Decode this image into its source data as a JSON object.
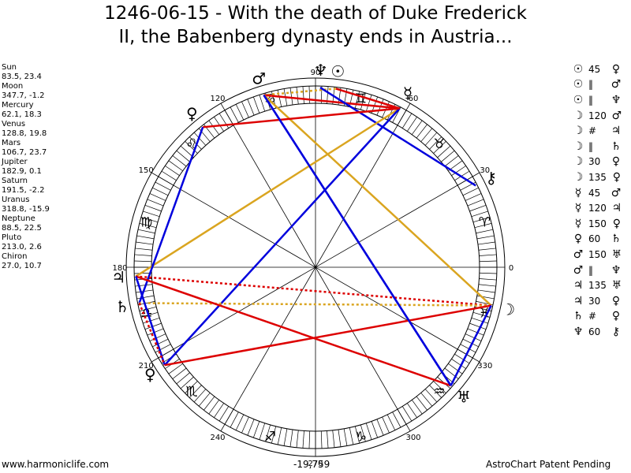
{
  "title": {
    "line1": "1246-06-15 - With the death of Duke Frederick",
    "line2": "II, the Babenberg dynasty ends in Austria..."
  },
  "positions": [
    {
      "name": "Sun",
      "value": "83.5, 23.4"
    },
    {
      "name": "Moon",
      "value": "347.7, -1.2"
    },
    {
      "name": "Mercury",
      "value": "62.1, 18.3"
    },
    {
      "name": "Venus",
      "value": "128.8, 19.8"
    },
    {
      "name": "Mars",
      "value": "106.7, 23.7"
    },
    {
      "name": "Jupiter",
      "value": "182.9, 0.1"
    },
    {
      "name": "Saturn",
      "value": "191.5, -2.2"
    },
    {
      "name": "Uranus",
      "value": "318.8, -15.9"
    },
    {
      "name": "Neptune",
      "value": "88.5, 22.5"
    },
    {
      "name": "Pluto",
      "value": "213.0, 2.6"
    },
    {
      "name": "Chiron",
      "value": "27.0, 10.7"
    }
  ],
  "aspects": [
    {
      "p1": "☉",
      "asp": "45",
      "p2": "♀"
    },
    {
      "p1": "☉",
      "asp": "‖",
      "p2": "♂"
    },
    {
      "p1": "☉",
      "asp": "‖",
      "p2": "♆"
    },
    {
      "p1": "☽",
      "asp": "120",
      "p2": "♂"
    },
    {
      "p1": "☽",
      "asp": "#",
      "p2": "♃"
    },
    {
      "p1": "☽",
      "asp": "‖",
      "p2": "♄"
    },
    {
      "p1": "☽",
      "asp": "30",
      "p2": "♀"
    },
    {
      "p1": "☽",
      "asp": "135",
      "p2": "♀"
    },
    {
      "p1": "☿",
      "asp": "45",
      "p2": "♂"
    },
    {
      "p1": "☿",
      "asp": "120",
      "p2": "♃"
    },
    {
      "p1": "☿",
      "asp": "150",
      "p2": "♀"
    },
    {
      "p1": "♀",
      "asp": "60",
      "p2": "♄"
    },
    {
      "p1": "♂",
      "asp": "150",
      "p2": "♅"
    },
    {
      "p1": "♂",
      "asp": "‖",
      "p2": "♆"
    },
    {
      "p1": "♃",
      "asp": "135",
      "p2": "♅"
    },
    {
      "p1": "♃",
      "asp": "30",
      "p2": "♀"
    },
    {
      "p1": "♄",
      "asp": "#",
      "p2": "♀"
    },
    {
      "p1": "♆",
      "asp": "60",
      "p2": "⚷"
    }
  ],
  "wheel": {
    "degree_labels": [
      "0",
      "30",
      "60",
      "90",
      "120",
      "150",
      "180",
      "210",
      "240",
      "270",
      "300",
      "330"
    ],
    "zodiac": [
      "♈",
      "♉",
      "♊",
      "♋",
      "♌",
      "♍",
      "♎",
      "♏",
      "♐",
      "♑",
      "♒",
      "♓"
    ],
    "planets": [
      {
        "glyph": "☉",
        "lon": 83.5
      },
      {
        "glyph": "☽",
        "lon": 347.7
      },
      {
        "glyph": "☿",
        "lon": 62.1
      },
      {
        "glyph": "♀",
        "lon": 128.8
      },
      {
        "glyph": "♂",
        "lon": 106.7
      },
      {
        "glyph": "♃",
        "lon": 182.9
      },
      {
        "glyph": "♄",
        "lon": 191.5
      },
      {
        "glyph": "♅",
        "lon": 318.8
      },
      {
        "glyph": "♆",
        "lon": 88.5
      },
      {
        "glyph": "♀",
        "lon": 213.0
      },
      {
        "glyph": "⚷",
        "lon": 27.0
      }
    ],
    "aspect_lines": [
      {
        "from": 83.5,
        "to": 62.1,
        "color": "#dd0000",
        "dotted": false
      },
      {
        "from": 83.5,
        "to": 106.7,
        "color": "#daa520",
        "dotted": true
      },
      {
        "from": 106.7,
        "to": 62.1,
        "color": "#dd0000",
        "dotted": false
      },
      {
        "from": 106.7,
        "to": 318.8,
        "color": "#0000dd",
        "dotted": false
      },
      {
        "from": 88.5,
        "to": 27.0,
        "color": "#0000dd",
        "dotted": false
      },
      {
        "from": 106.7,
        "to": 347.7,
        "color": "#daa520",
        "dotted": false
      },
      {
        "from": 62.1,
        "to": 182.9,
        "color": "#daa520",
        "dotted": false
      },
      {
        "from": 62.1,
        "to": 213.0,
        "color": "#0000dd",
        "dotted": false
      },
      {
        "from": 128.8,
        "to": 62.1,
        "color": "#dd0000",
        "dotted": false
      },
      {
        "from": 128.8,
        "to": 191.5,
        "color": "#0000dd",
        "dotted": false
      },
      {
        "from": 347.7,
        "to": 182.9,
        "color": "#dd0000",
        "dotted": true
      },
      {
        "from": 347.7,
        "to": 191.5,
        "color": "#daa520",
        "dotted": true
      },
      {
        "from": 347.7,
        "to": 213.0,
        "color": "#dd0000",
        "dotted": false
      },
      {
        "from": 347.7,
        "to": 318.8,
        "color": "#0000dd",
        "dotted": false
      },
      {
        "from": 182.9,
        "to": 318.8,
        "color": "#dd0000",
        "dotted": false
      },
      {
        "from": 182.9,
        "to": 213.0,
        "color": "#0000dd",
        "dotted": false
      },
      {
        "from": 191.5,
        "to": 213.0,
        "color": "#dd0000",
        "dotted": true
      },
      {
        "from": 318.8,
        "to": 106.7,
        "color": "#0000dd",
        "dotted": false
      }
    ]
  },
  "footer": {
    "left": "www.harmoniclife.com",
    "mid": "-19,759",
    "right": "AstroChart Patent Pending"
  }
}
